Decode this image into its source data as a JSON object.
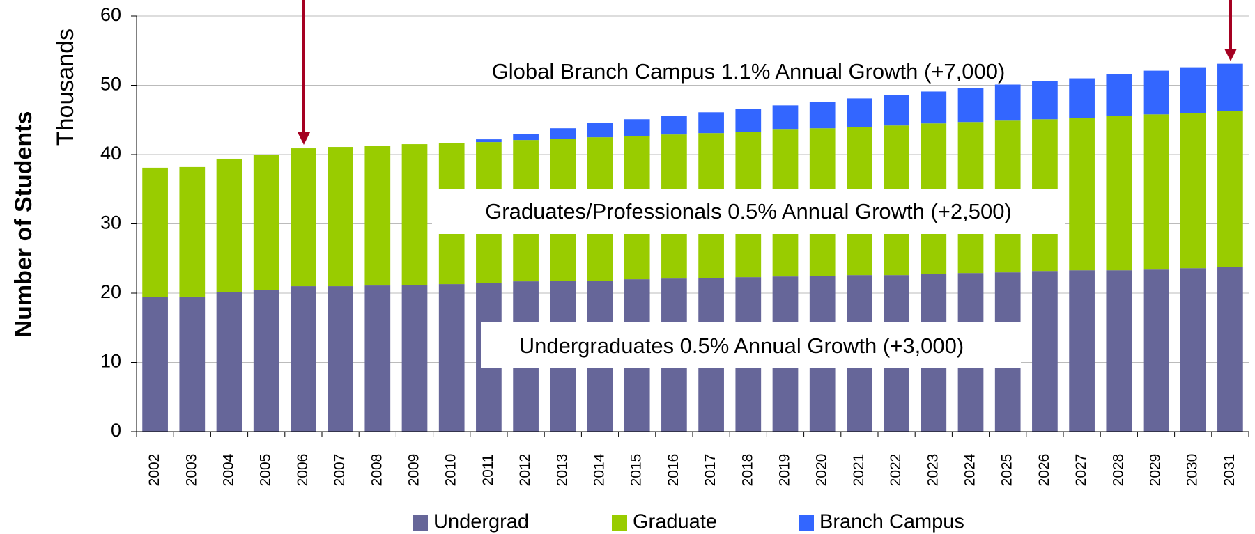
{
  "chart_data": {
    "type": "stacked_bar",
    "y_axis_label": "Number of Students",
    "y_axis_unit": "Thousands",
    "categories": [
      "2002",
      "2003",
      "2004",
      "2005",
      "2006",
      "2007",
      "2008",
      "2009",
      "2010",
      "2011",
      "2012",
      "2013",
      "2014",
      "2015",
      "2016",
      "2017",
      "2018",
      "2019",
      "2020",
      "2021",
      "2022",
      "2023",
      "2024",
      "2025",
      "2026",
      "2027",
      "2028",
      "2029",
      "2030",
      "2031"
    ],
    "series": [
      {
        "name": "Undergrad",
        "color": "#666699",
        "values": [
          19.4,
          19.5,
          20.1,
          20.5,
          21.0,
          21.0,
          21.1,
          21.2,
          21.3,
          21.5,
          21.7,
          21.8,
          21.8,
          22.0,
          22.1,
          22.2,
          22.3,
          22.4,
          22.5,
          22.6,
          22.6,
          22.8,
          22.9,
          23.0,
          23.2,
          23.3,
          23.3,
          23.4,
          23.6,
          23.8
        ]
      },
      {
        "name": "Graduate",
        "color": "#99cc00",
        "values": [
          18.7,
          18.7,
          19.3,
          19.5,
          19.9,
          20.1,
          20.2,
          20.3,
          20.4,
          20.3,
          20.4,
          20.5,
          20.7,
          20.7,
          20.8,
          20.9,
          21.0,
          21.2,
          21.3,
          21.4,
          21.6,
          21.7,
          21.8,
          21.9,
          21.9,
          22.0,
          22.3,
          22.4,
          22.4,
          22.5
        ]
      },
      {
        "name": "Branch Campus",
        "color": "#3366ff",
        "values": [
          null,
          null,
          null,
          null,
          null,
          null,
          null,
          null,
          null,
          0.4,
          0.9,
          1.5,
          2.1,
          2.4,
          2.7,
          3.0,
          3.3,
          3.5,
          3.8,
          4.1,
          4.4,
          4.6,
          4.9,
          5.2,
          5.5,
          5.7,
          6.0,
          6.3,
          6.6,
          6.8
        ]
      }
    ],
    "annotations": [
      "Global Branch Campus 1.1% Annual Growth (+7,000)",
      "Graduates/Professionals 0.5% Annual Growth (+2,500)",
      "Undergraduates 0.5% Annual Growth (+3,000)"
    ],
    "ylim": [
      0,
      60
    ],
    "yticks": [
      0,
      10,
      20,
      30,
      40,
      50,
      60
    ],
    "grid": true,
    "legend": "bottom"
  }
}
